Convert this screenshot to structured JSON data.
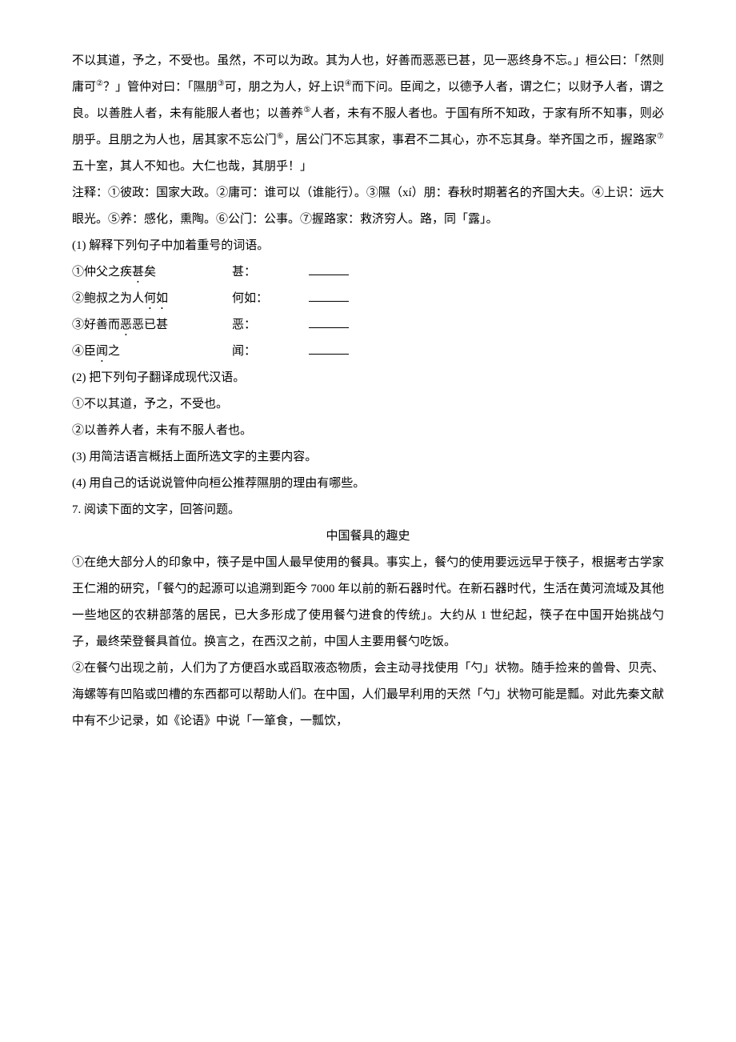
{
  "p1": "不以其道，予之，不受也。虽然，不可以为政。其为人也，好善而恶恶已甚，见一恶终身不忘。」桓公曰：「然则庸可",
  "p1_sup1": "②",
  "p1_cont1": "？」管仲对曰：「隰朋",
  "p1_sup2": "③",
  "p1_cont2": "可，朋之为人，好上识",
  "p1_sup3": "④",
  "p1_cont3": "而下问。臣闻之，以德予人者，谓之仁；以财予人者，谓之良。以善胜人者，未有能服人者也；以善养",
  "p1_sup4": "⑤",
  "p1_cont4": "人者，未有不服人者也。于国有所不知政，于家有所不知事，则必朋乎。且朋之为人也，居其家不忘公门",
  "p1_sup5": "⑥",
  "p1_cont5": "，居公门不忘其家，事君不二其心，亦不忘其身。举齐国之币，握路家",
  "p1_sup6": "⑦",
  "p1_cont6": "五十室，其人不知也。大仁也哉，其朋乎！」",
  "note": "注释：①彼政：国家大政。②庸可：谁可以（谁能行）。③隰（xí）朋：春秋时期著名的齐国大夫。④上识：远大眼光。⑤养：感化，熏陶。⑥公门：公事。⑦握路家：救济穷人。路，同「露」。",
  "q1": "(1) 解释下列句子中加着重号的词语。",
  "row1_col1_pre": "①仲父之疾",
  "row1_col1_dot": "甚",
  "row1_col1_post": "矣",
  "row1_col2": "甚：",
  "row2_col1_pre": "②鲍叔之为人",
  "row2_col1_dot": "何如",
  "row2_col2": "何如：",
  "row3_col1_pre": "③好善而",
  "row3_col1_dot": "恶",
  "row3_col1_post": "恶已甚",
  "row3_col2": "恶：",
  "row4_col1_pre": "④臣",
  "row4_col1_dot": "闻",
  "row4_col1_post": "之",
  "row4_col2": "闻：",
  "q2": "(2) 把下列句子翻译成现代汉语。",
  "q2_1": "①不以其道，予之，不受也。",
  "q2_2": "②以善养人者，未有不服人者也。",
  "q3": "(3) 用简洁语言概括上面所选文字的主要内容。",
  "q4": "(4) 用自己的话说说管仲向桓公推荐隰朋的理由有哪些。",
  "q7": "7.  阅读下面的文字，回答问题。",
  "title": "中国餐具的趣史",
  "para1": "①在绝大部分人的印象中，筷子是中国人最早使用的餐具。事实上，餐勺的使用要远远早于筷子，根据考古学家王仁湘的研究，「餐勺的起源可以追溯到距今 7000 年以前的新石器时代。在新石器时代，生活在黄河流域及其他一些地区的农耕部落的居民，已大多形成了使用餐勺进食的传统」。大约从 1 世纪起，筷子在中国开始挑战勺子，最终荣登餐具首位。换言之，在西汉之前，中国人主要用餐勺吃饭。",
  "para2": "②在餐勺出现之前，人们为了方便舀水或舀取液态物质，会主动寻找使用「勺」状物。随手捡来的兽骨、贝壳、海螺等有凹陷或凹槽的东西都可以帮助人们。在中国，人们最早利用的天然「勺」状物可能是瓢。对此先秦文献中有不少记录，如《论语》中说「一箪食，一瓢饮，"
}
